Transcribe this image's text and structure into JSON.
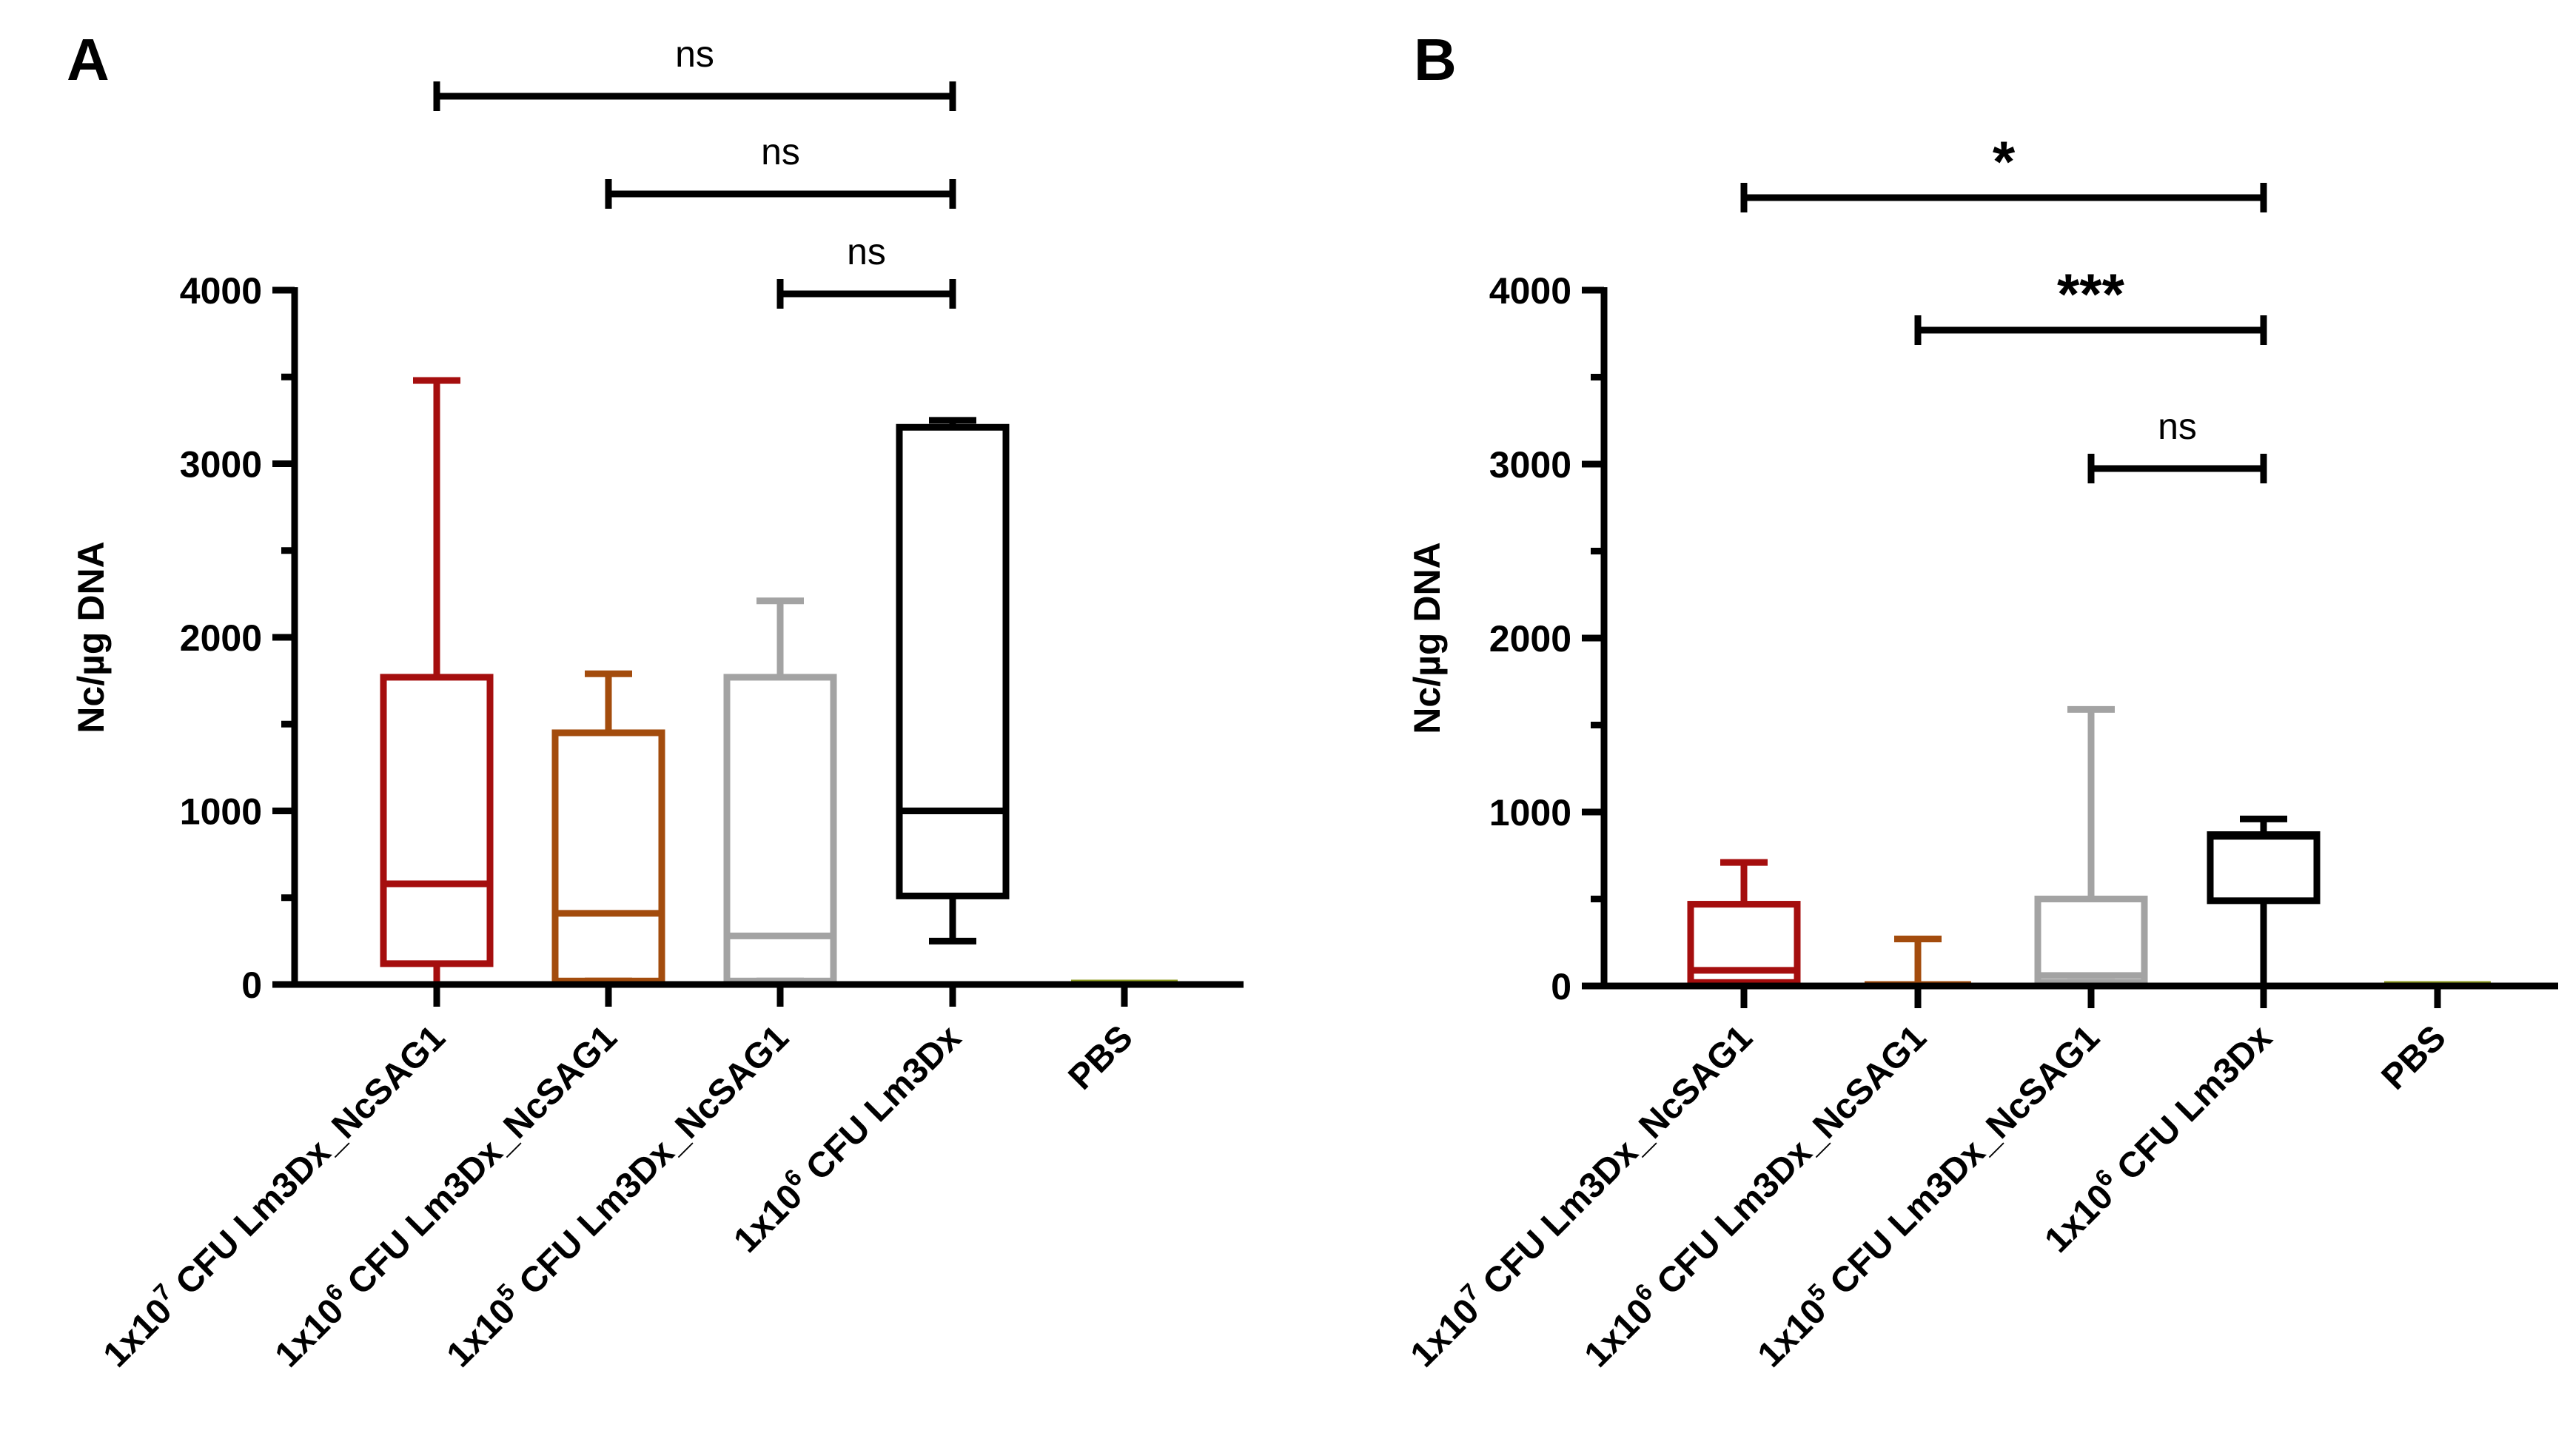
{
  "chart_data": [
    {
      "type": "box",
      "panel_label": "A",
      "ylabel": "Nc/µg DNA",
      "ylim": [
        0,
        4000
      ],
      "yticks": [
        0,
        1000,
        2000,
        3000,
        4000
      ],
      "categories": [
        {
          "prefix": "1x10",
          "exp": "7",
          "suffix": " CFU Lm3Dx_NcSAG1",
          "color": "#A50E0E"
        },
        {
          "prefix": "1x10",
          "exp": "6",
          "suffix": " CFU Lm3Dx_NcSAG1",
          "color": "#A34C0D"
        },
        {
          "prefix": "1x10",
          "exp": "5",
          "suffix": " CFU Lm3Dx_NcSAG1",
          "color": "#A3A3A3"
        },
        {
          "prefix": "1x10",
          "exp": "6",
          "suffix": " CFU Lm3Dx",
          "color": "#000000"
        },
        {
          "prefix": "PBS",
          "exp": "",
          "suffix": "",
          "color": "#8C9A1E"
        }
      ],
      "boxes": [
        {
          "min": 0,
          "q1": 120,
          "median": 580,
          "q3": 1770,
          "max": 3480
        },
        {
          "min": 20,
          "q1": 20,
          "median": 410,
          "q3": 1450,
          "max": 1790
        },
        {
          "min": 20,
          "q1": 20,
          "median": 280,
          "q3": 1770,
          "max": 2210
        },
        {
          "min": 250,
          "q1": 510,
          "median": 1000,
          "q3": 3210,
          "max": 3250
        },
        {
          "min": 0,
          "q1": 0,
          "median": 0,
          "q3": 0,
          "max": 0
        }
      ],
      "significance": [
        {
          "from": 0,
          "to": 3,
          "label": "ns"
        },
        {
          "from": 1,
          "to": 3,
          "label": "ns"
        },
        {
          "from": 2,
          "to": 3,
          "label": "ns"
        }
      ]
    },
    {
      "type": "box",
      "panel_label": "B",
      "ylabel": "Nc/µg DNA",
      "ylim": [
        0,
        4000
      ],
      "yticks": [
        0,
        1000,
        2000,
        3000,
        4000
      ],
      "categories": [
        {
          "prefix": "1x10",
          "exp": "7",
          "suffix": " CFU Lm3Dx_NcSAG1",
          "color": "#A50E0E"
        },
        {
          "prefix": "1x10",
          "exp": "6",
          "suffix": " CFU Lm3Dx_NcSAG1",
          "color": "#A34C0D"
        },
        {
          "prefix": "1x10",
          "exp": "5",
          "suffix": " CFU Lm3Dx_NcSAG1",
          "color": "#A3A3A3"
        },
        {
          "prefix": "1x10",
          "exp": "6",
          "suffix": " CFU Lm3Dx",
          "color": "#000000"
        },
        {
          "prefix": "PBS",
          "exp": "",
          "suffix": "",
          "color": "#8C9A1E"
        }
      ],
      "boxes": [
        {
          "min": 0,
          "q1": 20,
          "median": 90,
          "q3": 470,
          "max": 710
        },
        {
          "min": 0,
          "q1": 0,
          "median": 0,
          "q3": 0,
          "max": 270
        },
        {
          "min": 20,
          "q1": 20,
          "median": 60,
          "q3": 500,
          "max": 1590
        },
        {
          "min": 0,
          "q1": 490,
          "median": 860,
          "q3": 870,
          "max": 960
        },
        {
          "min": 0,
          "q1": 0,
          "median": 0,
          "q3": 0,
          "max": 0
        }
      ],
      "significance": [
        {
          "from": 0,
          "to": 3,
          "label": "*"
        },
        {
          "from": 1,
          "to": 3,
          "label": "***"
        },
        {
          "from": 2,
          "to": 3,
          "label": "ns"
        }
      ]
    }
  ]
}
